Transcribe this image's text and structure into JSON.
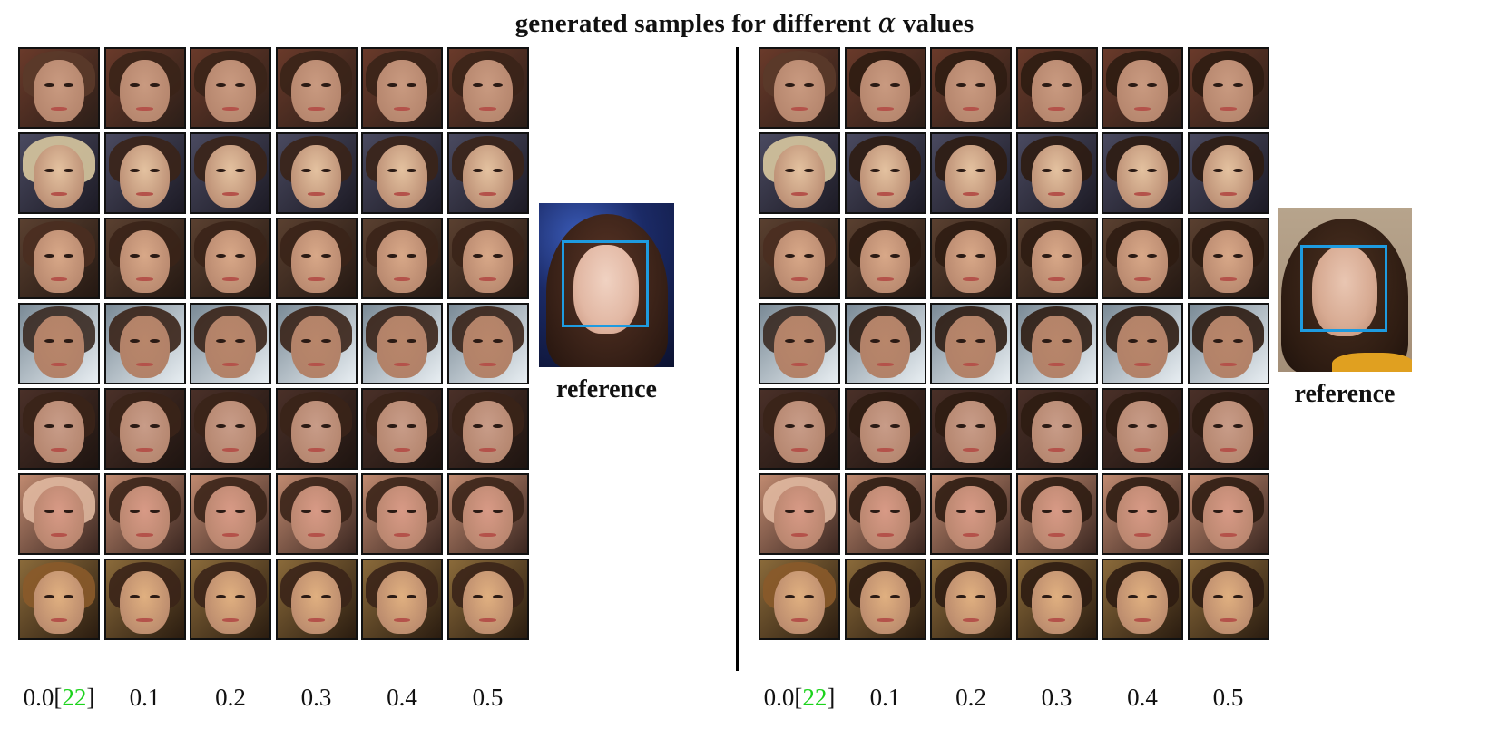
{
  "title": {
    "text": "generated samples for different ",
    "symbol": "α",
    "suffix": " values"
  },
  "reference_label": "reference",
  "panels": [
    {
      "columns": [
        "0.0[",
        "0.1",
        "0.2",
        "0.3",
        "0.4",
        "0.5"
      ],
      "citation": "22",
      "first_suffix": "]"
    },
    {
      "columns": [
        "0.0[",
        "0.1",
        "0.2",
        "0.3",
        "0.4",
        "0.5"
      ],
      "citation": "22",
      "first_suffix": "]"
    }
  ],
  "colors": {
    "citation": "#1cd31c",
    "reference_box": "#1e9be0"
  }
}
